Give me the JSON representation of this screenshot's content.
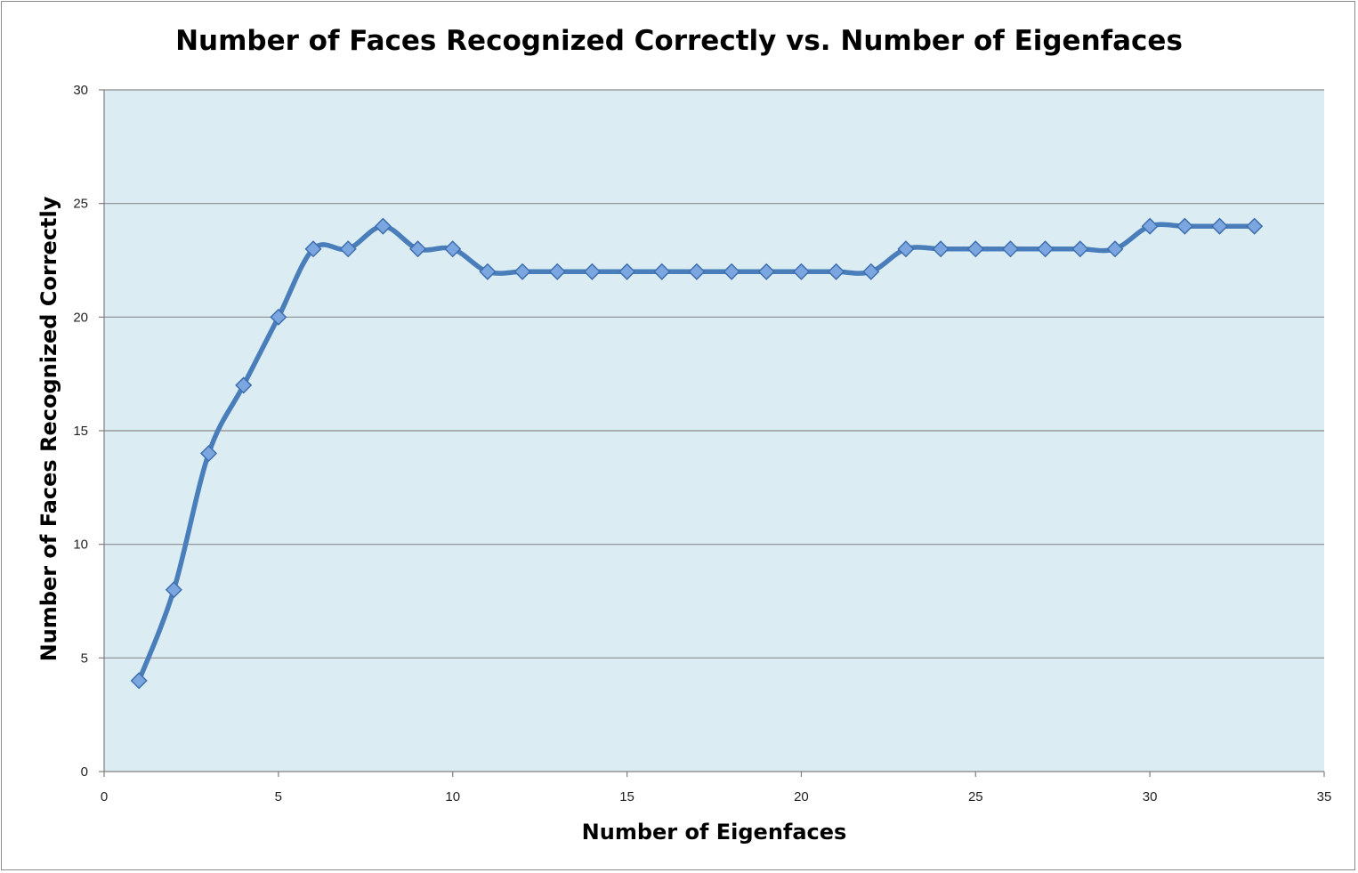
{
  "chart_data": {
    "type": "line",
    "title": "Number of Faces Recognized Correctly vs. Number of Eigenfaces",
    "xlabel": "Number of Eigenfaces",
    "ylabel": "Number of Faces Recognized Correctly",
    "xlim": [
      0,
      35
    ],
    "ylim": [
      0,
      30
    ],
    "xticks": [
      0,
      5,
      10,
      15,
      20,
      25,
      30,
      35
    ],
    "yticks": [
      0,
      5,
      10,
      15,
      20,
      25,
      30
    ],
    "grid": "horizontal",
    "smooth": true,
    "marker": "diamond",
    "series": [
      {
        "x": [
          1,
          2,
          3,
          4,
          5,
          6,
          7,
          8,
          9,
          10,
          11,
          12,
          13,
          14,
          15,
          16,
          17,
          18,
          19,
          20,
          21,
          22,
          23,
          24,
          25,
          26,
          27,
          28,
          29,
          30,
          31,
          32,
          33
        ],
        "values": [
          4,
          8,
          14,
          17,
          20,
          23,
          23,
          24,
          23,
          23,
          22,
          22,
          22,
          22,
          22,
          22,
          22,
          22,
          22,
          22,
          22,
          22,
          23,
          23,
          23,
          23,
          23,
          23,
          23,
          24,
          24,
          24,
          24
        ]
      }
    ]
  },
  "colors": {
    "plot_background": "#dbedf3",
    "gridline": "#8c8c8c",
    "line": "#4a7ebb",
    "marker_fill": "#7ba6e0",
    "marker_stroke": "#3f6fb0"
  }
}
